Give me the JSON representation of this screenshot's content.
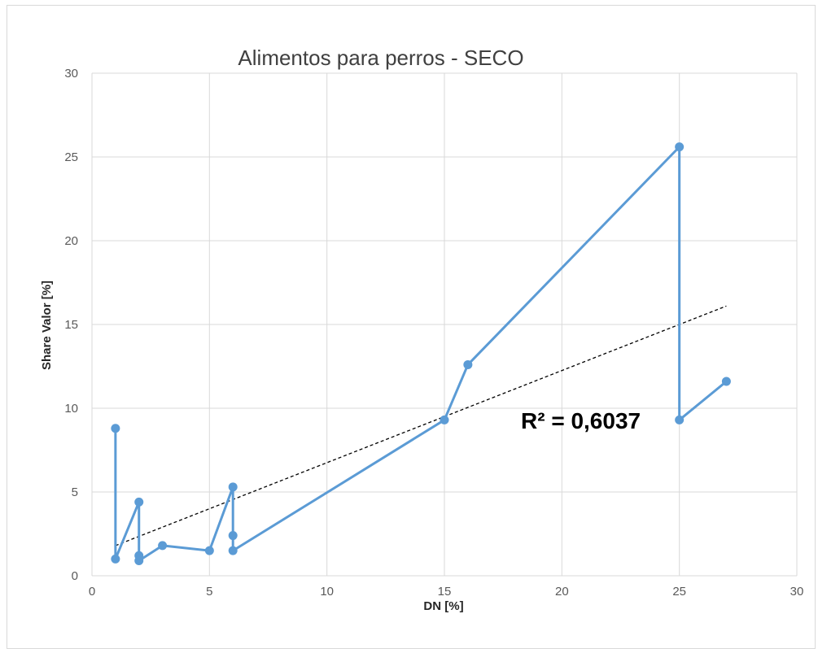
{
  "chart_data": {
    "type": "line",
    "title": "Alimentos para perros - SECO",
    "xlabel": "DN [%]",
    "ylabel": "Share Valor [%]",
    "xlim": [
      0,
      30
    ],
    "ylim": [
      0,
      30
    ],
    "x_ticks": [
      0,
      5,
      10,
      15,
      20,
      25,
      30
    ],
    "y_ticks": [
      0,
      5,
      10,
      15,
      20,
      25,
      30
    ],
    "grid": true,
    "legend": "none",
    "series": [
      {
        "color": "#5B9BD5",
        "marker": "circle",
        "x": [
          1,
          1,
          2,
          2,
          2,
          3,
          5,
          6,
          6,
          6,
          15,
          16,
          25,
          25,
          27
        ],
        "y": [
          8.8,
          1.0,
          4.4,
          1.2,
          0.9,
          1.8,
          1.5,
          5.3,
          2.4,
          1.5,
          9.3,
          12.6,
          25.6,
          9.3,
          11.6
        ]
      }
    ],
    "trendline": {
      "type": "linear",
      "style": "dashed",
      "color": "#000000",
      "x_range": [
        1,
        27
      ],
      "y_start": 1.8,
      "y_end": 16.1,
      "r_squared_label": "R² = 0,6037"
    }
  }
}
